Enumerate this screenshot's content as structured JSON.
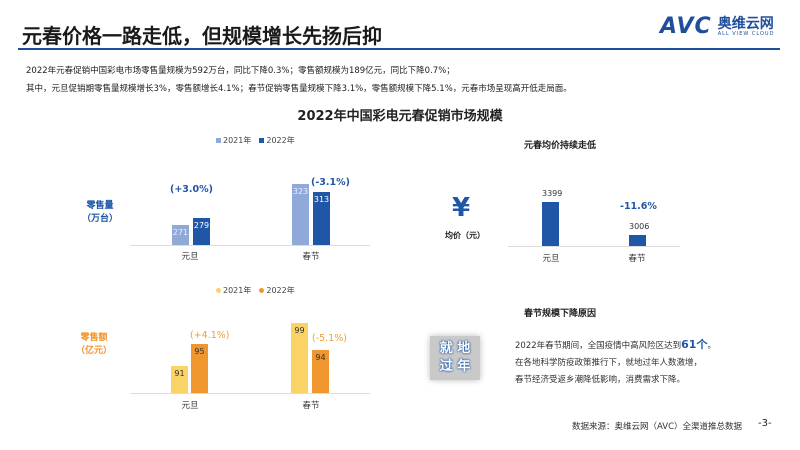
{
  "header": {
    "title": "元春价格一路走低，但规模增长先扬后抑",
    "logo_text": "AVC",
    "logo_cn": "奥维云网",
    "logo_en": "ALL VIEW CLOUD"
  },
  "summary": [
    "2022年元春促销中国彩电市场零售量规模为592万台，同比下降0.3%；零售额规模为189亿元，同比下降0.7%；",
    "其中，元旦促销期零售量规模增长3%，零售额增长4.1%；春节促销零售量规模下降3.1%，零售额规模下降5.1%，元春市场呈现高开低走局面。"
  ],
  "section_title": "2022年中国彩电元春促销市场规模",
  "chart_data": [
    {
      "type": "bar",
      "ylabel": "零售量（万台）",
      "categories": [
        "元旦",
        "春节"
      ],
      "series": [
        {
          "name": "2021年",
          "values": [
            271,
            323
          ],
          "color": "#8fa9d8"
        },
        {
          "name": "2022年",
          "values": [
            279,
            313
          ],
          "color": "#1f56a6"
        }
      ],
      "annotations": [
        "(+3.0%)",
        "(-3.1%)"
      ],
      "legend": "top"
    },
    {
      "type": "bar",
      "ylabel": "零售额（亿元）",
      "categories": [
        "元旦",
        "春节"
      ],
      "series": [
        {
          "name": "2021年",
          "values": [
            91,
            99
          ],
          "color": "#f9d365"
        },
        {
          "name": "2022年",
          "values": [
            95,
            94
          ],
          "color": "#f0962e"
        }
      ],
      "annotations": [
        "(+4.1%)",
        "(-5.1%)"
      ],
      "legend": "top"
    },
    {
      "type": "bar",
      "title": "元春均价持续走低",
      "ylabel": "均价（元）",
      "categories": [
        "元旦",
        "春节"
      ],
      "values": [
        3399,
        3006
      ],
      "color": "#1f56a6",
      "annotations": [
        "-11.6%"
      ]
    }
  ],
  "reason": {
    "title": "春节规模下降原因",
    "image_text": [
      "就 地",
      "过 年"
    ],
    "line1_prefix": "2022年春节期间，全国疫情中高风险区达到",
    "line1_highlight": "61个",
    "line1_suffix": "。",
    "line2": "在各地科学防疫政策推行下，就地过年人数激增，",
    "line3": "春节经济受返乡潮降低影响，消费需求下降。"
  },
  "footer": {
    "source": "数据来源：奥维云网（AVC）全渠道推总数据",
    "page": "-3-"
  }
}
